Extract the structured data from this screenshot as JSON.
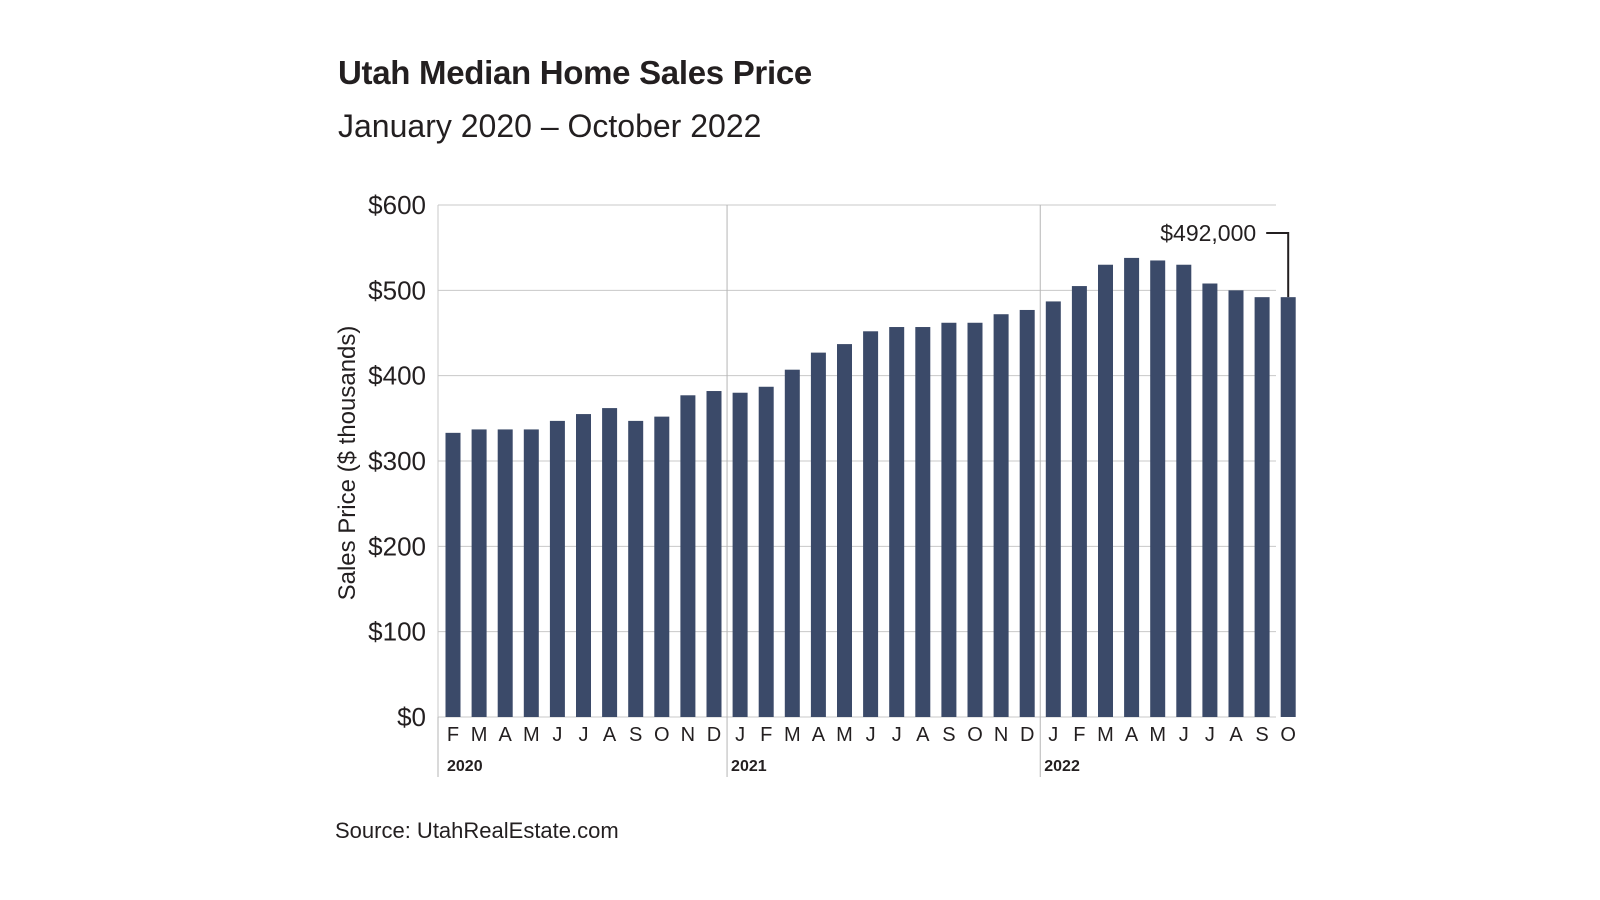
{
  "title": "Utah Median Home Sales Price",
  "subtitle": "January 2020 – October 2022",
  "source": "Source: UtahRealEstate.com",
  "chart_data": {
    "type": "bar",
    "title": "Utah Median Home Sales Price",
    "subtitle": "January 2020 – October 2022",
    "xlabel": "",
    "ylabel": "Sales Price ($ thousands)",
    "ylim": [
      0,
      600
    ],
    "yticks": [
      0,
      100,
      200,
      300,
      400,
      500,
      600
    ],
    "ytick_labels": [
      "$0",
      "$100",
      "$200",
      "$300",
      "$400",
      "$500",
      "$600"
    ],
    "grid": true,
    "bar_color": "#3b4a69",
    "categories": [
      "F",
      "M",
      "A",
      "M",
      "J",
      "J",
      "A",
      "S",
      "O",
      "N",
      "D",
      "J",
      "F",
      "M",
      "A",
      "M",
      "J",
      "J",
      "A",
      "S",
      "O",
      "N",
      "D",
      "J",
      "F",
      "M",
      "A",
      "M",
      "J",
      "J",
      "A",
      "S",
      "O"
    ],
    "year_groups": [
      {
        "label": "2020",
        "start": 0,
        "end": 10
      },
      {
        "label": "2021",
        "start": 11,
        "end": 22
      },
      {
        "label": "2022",
        "start": 23,
        "end": 32
      }
    ],
    "values": [
      333,
      337,
      337,
      337,
      347,
      355,
      362,
      347,
      352,
      377,
      382,
      380,
      387,
      407,
      427,
      437,
      452,
      457,
      457,
      462,
      462,
      472,
      477,
      487,
      505,
      530,
      538,
      535,
      530,
      508,
      500,
      492,
      492
    ],
    "annotation": {
      "text": "$492,000",
      "index": 32
    }
  }
}
